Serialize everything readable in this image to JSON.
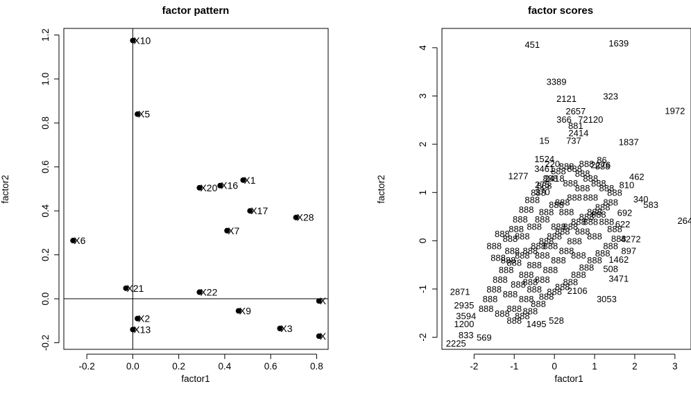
{
  "chart_data": [
    {
      "type": "scatter",
      "title": "factor pattern",
      "xlabel": "factor1",
      "ylabel": "factor2",
      "xlim": [
        -0.3,
        0.85
      ],
      "ylim": [
        -0.23,
        1.23
      ],
      "xticks": [
        "-0.2",
        "0.0",
        "0.2",
        "0.4",
        "0.6",
        "0.8"
      ],
      "yticks": [
        "-0.2",
        "0.0",
        "0.2",
        "0.4",
        "0.6",
        "0.8",
        "1.0",
        "1.2"
      ],
      "reference_lines": {
        "x": 0,
        "y": 0
      },
      "points": [
        {
          "label": "X10",
          "x": 0.0,
          "y": 1.175
        },
        {
          "label": "X5",
          "x": 0.02,
          "y": 0.84
        },
        {
          "label": "X1",
          "x": 0.48,
          "y": 0.54
        },
        {
          "label": "X16",
          "x": 0.38,
          "y": 0.515
        },
        {
          "label": "X20",
          "x": 0.29,
          "y": 0.505
        },
        {
          "label": "X17",
          "x": 0.51,
          "y": 0.4
        },
        {
          "label": "X28",
          "x": 0.71,
          "y": 0.37
        },
        {
          "label": "X7",
          "x": 0.41,
          "y": 0.31
        },
        {
          "label": "X6",
          "x": -0.26,
          "y": 0.265
        },
        {
          "label": "X21",
          "x": -0.03,
          "y": 0.048
        },
        {
          "label": "X22",
          "x": 0.29,
          "y": 0.03
        },
        {
          "label": "X9",
          "x": 0.46,
          "y": -0.055
        },
        {
          "label": "X2",
          "x": 0.02,
          "y": -0.09
        },
        {
          "label": "X3",
          "x": 0.64,
          "y": -0.135
        },
        {
          "label": "X13",
          "x": 0.0,
          "y": -0.14
        },
        {
          "label": "X",
          "x": 0.81,
          "y": -0.01
        },
        {
          "label": "X",
          "x": 0.81,
          "y": -0.17
        }
      ]
    },
    {
      "type": "scatter",
      "title": "factor scores",
      "xlabel": "factor1",
      "ylabel": "factor2",
      "xlim": [
        -2.8,
        3.4
      ],
      "ylim": [
        -2.25,
        4.4
      ],
      "xticks": [
        "-2",
        "-1",
        "0",
        "1",
        "2",
        "3"
      ],
      "yticks": [
        "-2",
        "-1",
        "0",
        "1",
        "2",
        "3",
        "4"
      ],
      "labels": [
        {
          "text": "451",
          "x": -0.55,
          "y": 4.07
        },
        {
          "text": "1639",
          "x": 1.6,
          "y": 4.1
        },
        {
          "text": "3389",
          "x": 0.05,
          "y": 3.3
        },
        {
          "text": "2121",
          "x": 0.3,
          "y": 2.95
        },
        {
          "text": "323",
          "x": 1.4,
          "y": 3.0
        },
        {
          "text": "2657",
          "x": 0.53,
          "y": 2.69
        },
        {
          "text": "1972",
          "x": 3.0,
          "y": 2.7
        },
        {
          "text": "366",
          "x": 0.24,
          "y": 2.52
        },
        {
          "text": "72120",
          "x": 0.9,
          "y": 2.52
        },
        {
          "text": "881",
          "x": 0.53,
          "y": 2.39
        },
        {
          "text": "2414",
          "x": 0.6,
          "y": 2.24
        },
        {
          "text": "15",
          "x": -0.25,
          "y": 2.08
        },
        {
          "text": "737",
          "x": 0.48,
          "y": 2.08
        },
        {
          "text": "1837",
          "x": 1.85,
          "y": 2.05
        },
        {
          "text": "1524",
          "x": -0.25,
          "y": 1.7
        },
        {
          "text": "86",
          "x": 1.18,
          "y": 1.68
        },
        {
          "text": "220",
          "x": -0.05,
          "y": 1.6
        },
        {
          "text": "2276",
          "x": 1.15,
          "y": 1.58
        },
        {
          "text": "3461",
          "x": -0.25,
          "y": 1.5
        },
        {
          "text": "1277",
          "x": -0.9,
          "y": 1.35
        },
        {
          "text": "2418",
          "x": 0.0,
          "y": 1.3
        },
        {
          "text": "462",
          "x": 2.05,
          "y": 1.33
        },
        {
          "text": "275",
          "x": -0.3,
          "y": 1.17
        },
        {
          "text": "810",
          "x": 1.8,
          "y": 1.16
        },
        {
          "text": "370",
          "x": -0.3,
          "y": 1.02
        },
        {
          "text": "340",
          "x": 2.15,
          "y": 0.87
        },
        {
          "text": "583",
          "x": 2.4,
          "y": 0.75
        },
        {
          "text": "692",
          "x": 1.75,
          "y": 0.59
        },
        {
          "text": "264",
          "x": 3.25,
          "y": 0.42
        },
        {
          "text": "622",
          "x": 1.7,
          "y": 0.35
        },
        {
          "text": "4272",
          "x": 1.9,
          "y": 0.04
        },
        {
          "text": "897",
          "x": 1.85,
          "y": -0.2
        },
        {
          "text": "1462",
          "x": 1.6,
          "y": -0.38
        },
        {
          "text": "508",
          "x": 1.4,
          "y": -0.58
        },
        {
          "text": "3471",
          "x": 1.6,
          "y": -0.78
        },
        {
          "text": "2106",
          "x": 0.57,
          "y": -1.03
        },
        {
          "text": "3053",
          "x": 1.3,
          "y": -1.2
        },
        {
          "text": "2871",
          "x": -2.35,
          "y": -1.05
        },
        {
          "text": "2935",
          "x": -2.25,
          "y": -1.33
        },
        {
          "text": "3594",
          "x": -2.2,
          "y": -1.55
        },
        {
          "text": "1495",
          "x": -0.45,
          "y": -1.72
        },
        {
          "text": "528",
          "x": 0.05,
          "y": -1.65
        },
        {
          "text": "1200",
          "x": -2.25,
          "y": -1.72
        },
        {
          "text": "833",
          "x": -2.2,
          "y": -1.95
        },
        {
          "text": "569",
          "x": -1.75,
          "y": -2.0
        },
        {
          "text": "2225",
          "x": -2.45,
          "y": -2.12
        }
      ],
      "cloud_points": [
        [
          -1.1,
          0.05
        ],
        [
          -0.95,
          0.25
        ],
        [
          -0.85,
          0.45
        ],
        [
          -0.7,
          0.65
        ],
        [
          -0.55,
          0.85
        ],
        [
          -0.4,
          1.0
        ],
        [
          -0.25,
          1.15
        ],
        [
          -0.1,
          1.3
        ],
        [
          0.1,
          1.45
        ],
        [
          0.3,
          1.55
        ],
        [
          0.5,
          1.5
        ],
        [
          0.7,
          1.4
        ],
        [
          0.9,
          1.3
        ],
        [
          1.1,
          1.2
        ],
        [
          1.3,
          1.1
        ],
        [
          1.5,
          1.0
        ],
        [
          1.4,
          0.8
        ],
        [
          1.2,
          0.7
        ],
        [
          1.0,
          0.6
        ],
        [
          0.8,
          0.5
        ],
        [
          0.6,
          0.4
        ],
        [
          0.4,
          0.3
        ],
        [
          0.2,
          0.2
        ],
        [
          0.0,
          0.1
        ],
        [
          -0.2,
          0.0
        ],
        [
          -0.4,
          -0.1
        ],
        [
          -0.6,
          -0.2
        ],
        [
          -0.8,
          -0.3
        ],
        [
          -1.0,
          -0.45
        ],
        [
          -1.2,
          -0.6
        ],
        [
          -1.35,
          -0.8
        ],
        [
          -1.5,
          -1.0
        ],
        [
          -1.6,
          -1.2
        ],
        [
          -1.7,
          -1.4
        ],
        [
          -1.3,
          -1.5
        ],
        [
          -1.0,
          -1.4
        ],
        [
          -0.7,
          -1.2
        ],
        [
          -0.5,
          -1.0
        ],
        [
          -0.3,
          -0.8
        ],
        [
          -0.1,
          -0.6
        ],
        [
          0.1,
          -0.4
        ],
        [
          0.3,
          -0.2
        ],
        [
          0.5,
          0.0
        ],
        [
          0.7,
          0.2
        ],
        [
          0.9,
          0.4
        ],
        [
          1.1,
          0.55
        ],
        [
          1.3,
          0.4
        ],
        [
          1.5,
          0.25
        ],
        [
          1.6,
          0.05
        ],
        [
          1.4,
          -0.1
        ],
        [
          1.2,
          -0.25
        ],
        [
          1.0,
          -0.4
        ],
        [
          0.8,
          -0.55
        ],
        [
          0.6,
          -0.7
        ],
        [
          0.4,
          -0.85
        ],
        [
          0.2,
          -0.95
        ],
        [
          0.0,
          -1.05
        ],
        [
          -0.2,
          -1.15
        ],
        [
          -0.4,
          -1.3
        ],
        [
          -0.6,
          -1.45
        ],
        [
          -0.8,
          -1.55
        ],
        [
          -1.0,
          -1.65
        ],
        [
          -0.9,
          -0.9
        ],
        [
          -0.7,
          -0.7
        ],
        [
          -0.5,
          -0.5
        ],
        [
          -0.3,
          -0.3
        ],
        [
          -0.1,
          -0.1
        ],
        [
          0.1,
          0.3
        ],
        [
          0.3,
          0.6
        ],
        [
          0.5,
          0.9
        ],
        [
          0.7,
          1.1
        ],
        [
          0.9,
          0.9
        ],
        [
          0.2,
          0.8
        ],
        [
          -0.2,
          0.6
        ],
        [
          -0.5,
          0.3
        ],
        [
          -0.8,
          0.1
        ],
        [
          -1.05,
          -0.2
        ],
        [
          -1.15,
          -0.4
        ],
        [
          0.6,
          -0.3
        ],
        [
          1.0,
          0.1
        ],
        [
          -1.3,
          0.15
        ],
        [
          -1.5,
          -0.1
        ],
        [
          -1.4,
          -0.35
        ],
        [
          -0.3,
          0.45
        ],
        [
          0.4,
          1.2
        ],
        [
          1.2,
          1.55
        ],
        [
          0.8,
          1.6
        ],
        [
          0.05,
          0.75
        ],
        [
          -0.6,
          -0.85
        ],
        [
          -1.1,
          -1.1
        ]
      ]
    }
  ]
}
